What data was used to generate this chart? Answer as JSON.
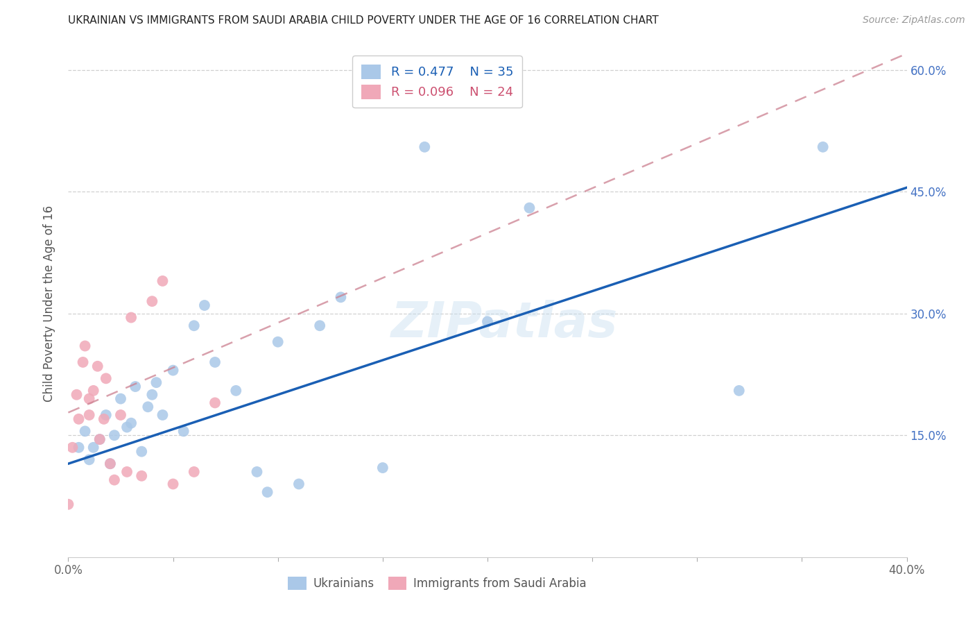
{
  "title": "UKRAINIAN VS IMMIGRANTS FROM SAUDI ARABIA CHILD POVERTY UNDER THE AGE OF 16 CORRELATION CHART",
  "source": "Source: ZipAtlas.com",
  "ylabel": "Child Poverty Under the Age of 16",
  "watermark": "ZIPatlas",
  "legend_blue_r": "R = 0.477",
  "legend_blue_n": "N = 35",
  "legend_pink_r": "R = 0.096",
  "legend_pink_n": "N = 24",
  "legend_label_blue": "Ukrainians",
  "legend_label_pink": "Immigrants from Saudi Arabia",
  "xlim": [
    0.0,
    0.4
  ],
  "ylim": [
    0.0,
    0.625
  ],
  "blue_scatter_x": [
    0.005,
    0.008,
    0.01,
    0.012,
    0.015,
    0.018,
    0.02,
    0.022,
    0.025,
    0.028,
    0.03,
    0.032,
    0.035,
    0.038,
    0.04,
    0.042,
    0.045,
    0.05,
    0.055,
    0.06,
    0.065,
    0.07,
    0.08,
    0.09,
    0.095,
    0.1,
    0.11,
    0.12,
    0.13,
    0.15,
    0.17,
    0.2,
    0.22,
    0.32,
    0.36
  ],
  "blue_scatter_y": [
    0.135,
    0.155,
    0.12,
    0.135,
    0.145,
    0.175,
    0.115,
    0.15,
    0.195,
    0.16,
    0.165,
    0.21,
    0.13,
    0.185,
    0.2,
    0.215,
    0.175,
    0.23,
    0.155,
    0.285,
    0.31,
    0.24,
    0.205,
    0.105,
    0.08,
    0.265,
    0.09,
    0.285,
    0.32,
    0.11,
    0.505,
    0.29,
    0.43,
    0.205,
    0.505
  ],
  "pink_scatter_x": [
    0.0,
    0.002,
    0.004,
    0.005,
    0.007,
    0.008,
    0.01,
    0.01,
    0.012,
    0.014,
    0.015,
    0.017,
    0.018,
    0.02,
    0.022,
    0.025,
    0.028,
    0.03,
    0.035,
    0.04,
    0.045,
    0.05,
    0.06,
    0.07
  ],
  "pink_scatter_y": [
    0.065,
    0.135,
    0.2,
    0.17,
    0.24,
    0.26,
    0.175,
    0.195,
    0.205,
    0.235,
    0.145,
    0.17,
    0.22,
    0.115,
    0.095,
    0.175,
    0.105,
    0.295,
    0.1,
    0.315,
    0.34,
    0.09,
    0.105,
    0.19
  ],
  "blue_line_x": [
    0.0,
    0.4
  ],
  "blue_line_y": [
    0.115,
    0.455
  ],
  "pink_line_x": [
    0.0,
    0.4
  ],
  "pink_line_y": [
    0.178,
    0.62
  ],
  "scatter_size": 130,
  "blue_color": "#aac8e8",
  "pink_color": "#f0a8b8",
  "blue_line_color": "#1a5fb4",
  "pink_line_color": "#cc8090",
  "title_color": "#222222",
  "axis_label_color": "#555555",
  "right_tick_color": "#4472c4",
  "grid_color": "#d0d0d0",
  "background_color": "#ffffff"
}
